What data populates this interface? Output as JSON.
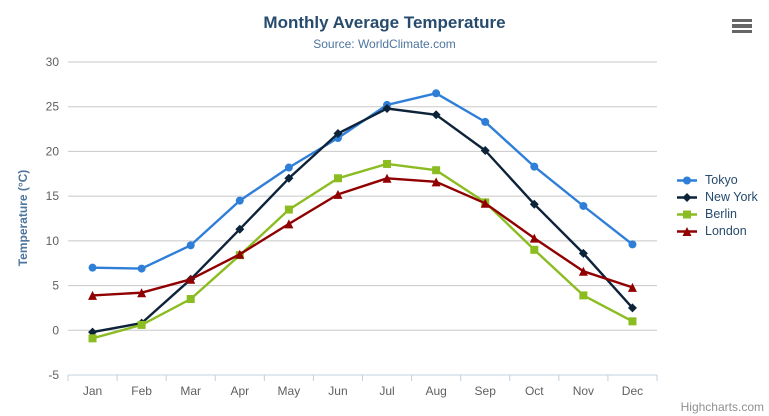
{
  "chart": {
    "title": "Monthly Average Temperature",
    "subtitle": "Source: WorldClimate.com",
    "credits": "Highcharts.com"
  },
  "chart_data": {
    "type": "line",
    "title": "Monthly Average Temperature",
    "subtitle": "Source: WorldClimate.com",
    "categories": [
      "Jan",
      "Feb",
      "Mar",
      "Apr",
      "May",
      "Jun",
      "Jul",
      "Aug",
      "Sep",
      "Oct",
      "Nov",
      "Dec"
    ],
    "xlabel": "",
    "ylabel": "Temperature (°C)",
    "ylim": [
      -5,
      30
    ],
    "yticks": [
      -5,
      0,
      5,
      10,
      15,
      20,
      25,
      30
    ],
    "grid": true,
    "legend_position": "right-middle",
    "series": [
      {
        "name": "Tokyo",
        "color": "#2f7ed8",
        "marker": "circle",
        "values": [
          7.0,
          6.9,
          9.5,
          14.5,
          18.2,
          21.5,
          25.2,
          26.5,
          23.3,
          18.3,
          13.9,
          9.6
        ]
      },
      {
        "name": "New York",
        "color": "#0d233a",
        "marker": "diamond",
        "values": [
          -0.2,
          0.8,
          5.7,
          11.3,
          17.0,
          22.0,
          24.8,
          24.1,
          20.1,
          14.1,
          8.6,
          2.5
        ]
      },
      {
        "name": "Berlin",
        "color": "#8bbc21",
        "marker": "square",
        "values": [
          -0.9,
          0.6,
          3.5,
          8.4,
          13.5,
          17.0,
          18.6,
          17.9,
          14.3,
          9.0,
          3.9,
          1.0
        ]
      },
      {
        "name": "London",
        "color": "#910000",
        "marker": "triangle",
        "values": [
          3.9,
          4.2,
          5.7,
          8.5,
          11.9,
          15.2,
          17.0,
          16.6,
          14.2,
          10.3,
          6.6,
          4.8
        ]
      }
    ]
  },
  "colors": {
    "title": "#274b6d",
    "subtitle": "#4d759e",
    "axis_labels": "#606060",
    "axis_title": "#4d759e",
    "grid_line": "#c8c8c8",
    "axis_line": "#c0d0e0",
    "legend_text": "#274b6d",
    "credits": "#909090",
    "menu_icon": "#666666"
  },
  "icons": {
    "context_menu": "hamburger-icon"
  }
}
